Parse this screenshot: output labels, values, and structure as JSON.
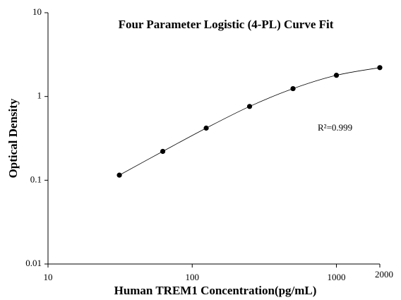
{
  "chart_data": {
    "type": "scatter",
    "title": "Four Parameter Logistic (4-PL) Curve Fit",
    "xlabel": "Human TREM1 Concentration(pg/mL)",
    "ylabel": "Optical Density",
    "annotation": "R²=0.999",
    "x": [
      31.25,
      62.5,
      125,
      250,
      500,
      1000,
      2000
    ],
    "series": [
      {
        "color": "#000000",
        "values": [
          0.115,
          0.221,
          0.419,
          0.76,
          1.24,
          1.79,
          2.21
        ]
      }
    ],
    "xscale": "log",
    "yscale": "log",
    "xlim": [
      10,
      2000
    ],
    "ylim": [
      0.01,
      10
    ],
    "xticks": [
      10,
      100,
      1000,
      2000
    ],
    "yticks": [
      0.01,
      0.1,
      1,
      10
    ],
    "grid": false
  }
}
